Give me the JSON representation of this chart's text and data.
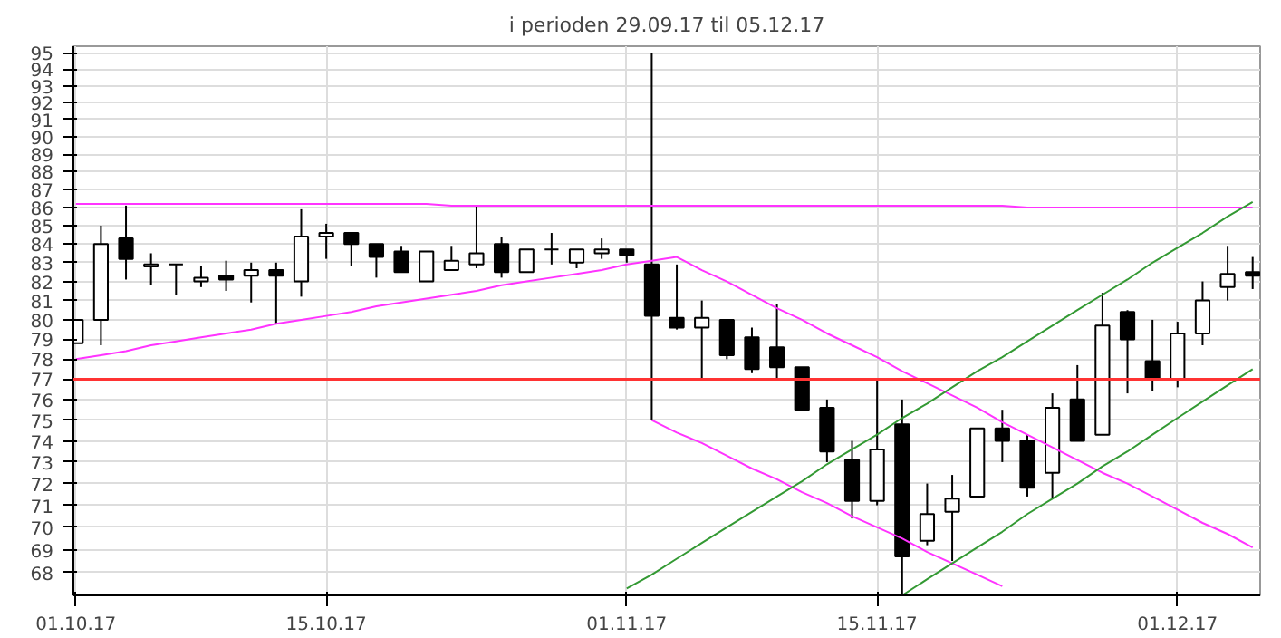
{
  "chart_data": {
    "type": "candlestick",
    "title": "i perioden 29.09.17 til 05.12.17",
    "categories": [
      "01.10.17",
      null,
      null,
      null,
      null,
      null,
      null,
      null,
      null,
      null,
      "15.10.17",
      null,
      null,
      null,
      null,
      null,
      null,
      null,
      null,
      null,
      null,
      null,
      "01.11.17",
      null,
      null,
      null,
      null,
      null,
      null,
      null,
      null,
      null,
      "15.11.17",
      null,
      null,
      null,
      null,
      null,
      null,
      null,
      null,
      null,
      null,
      null,
      "01.12.17",
      null,
      null,
      null
    ],
    "ohlc": [
      [
        78.8,
        80,
        78.8,
        80
      ],
      [
        80,
        85,
        78.7,
        84
      ],
      [
        84.3,
        86.1,
        82.1,
        83.2
      ],
      [
        82.8,
        83.5,
        81.8,
        82.9
      ],
      [
        82.9,
        82.9,
        81.3,
        82.9
      ],
      [
        82.0,
        82.8,
        81.7,
        82.2
      ],
      [
        82.3,
        83.1,
        81.5,
        82.1
      ],
      [
        82.3,
        83,
        80.9,
        82.6
      ],
      [
        82.6,
        83,
        79.8,
        82.3
      ],
      [
        82,
        85.9,
        81.2,
        84.4
      ],
      [
        84.4,
        85.1,
        83.2,
        84.6
      ],
      [
        84.6,
        84.6,
        82.8,
        84
      ],
      [
        84,
        84,
        82.2,
        83.3
      ],
      [
        83.6,
        83.9,
        82.5,
        82.5
      ],
      [
        82,
        83.6,
        82,
        83.6
      ],
      [
        82.6,
        83.9,
        82.6,
        83.1
      ],
      [
        82.9,
        86.1,
        82.7,
        83.5
      ],
      [
        84,
        84.4,
        82.2,
        82.5
      ],
      [
        82.5,
        83.7,
        82.5,
        83.7
      ],
      [
        83.7,
        84.6,
        82.9,
        83.7
      ],
      [
        83,
        83.7,
        82.7,
        83.7
      ],
      [
        83.5,
        84.3,
        83.2,
        83.7
      ],
      [
        83.7,
        83.7,
        83,
        83.4
      ],
      [
        82.9,
        95,
        75,
        80.2
      ],
      [
        80.1,
        82.9,
        79.5,
        79.6
      ],
      [
        79.6,
        81,
        77,
        80.1
      ],
      [
        80,
        80,
        78,
        78.2
      ],
      [
        79.1,
        79.6,
        77.3,
        77.5
      ],
      [
        78.6,
        80.8,
        77,
        77.6
      ],
      [
        77.6,
        77.6,
        75.5,
        75.5
      ],
      [
        75.6,
        76,
        73,
        73.5
      ],
      [
        73.1,
        74,
        70.4,
        71.2
      ],
      [
        71.2,
        77,
        71,
        73.6
      ],
      [
        74.8,
        76,
        67,
        68.7
      ],
      [
        69.4,
        72,
        69.2,
        70.6
      ],
      [
        70.7,
        72.4,
        68.5,
        71.3
      ],
      [
        71.4,
        74.6,
        71.4,
        74.6
      ],
      [
        74.6,
        75.5,
        73,
        74
      ],
      [
        74,
        74.3,
        71.4,
        71.8
      ],
      [
        72.5,
        76.3,
        71.3,
        75.6
      ],
      [
        76,
        77.7,
        74,
        74
      ],
      [
        74.3,
        81.4,
        74.3,
        79.7
      ],
      [
        80.4,
        80.5,
        76.3,
        79
      ],
      [
        77.9,
        80,
        76.4,
        77
      ],
      [
        77,
        79.9,
        76.6,
        79.3
      ],
      [
        79.3,
        82,
        78.7,
        81
      ],
      [
        81.7,
        83.9,
        81,
        82.4
      ],
      [
        82.5,
        83.3,
        81.6,
        82.3
      ]
    ],
    "series": [
      {
        "type": "line",
        "color": "#ff33ff",
        "values": [
          86.2,
          86.2,
          86.2,
          86.2,
          86.2,
          86.2,
          86.2,
          86.2,
          86.2,
          86.2,
          86.2,
          86.2,
          86.2,
          86.2,
          86.2,
          86.1,
          86.1,
          86.1,
          86.1,
          86.1,
          86.1,
          86.1,
          86.1,
          86.1,
          86.1,
          86.1,
          86.1,
          86.1,
          86.1,
          86.1,
          86.1,
          86.1,
          86.1,
          86.1,
          86.1,
          86.1,
          86.1,
          86.1,
          86.0,
          86.0,
          86.0,
          86.0,
          86.0,
          86.0,
          86.0,
          86.0,
          86.0,
          86.0
        ]
      },
      {
        "type": "line",
        "color": "#ff33ff",
        "values": [
          78.0,
          78.2,
          78.4,
          78.7,
          78.9,
          79.1,
          79.3,
          79.5,
          79.8,
          80.0,
          80.2,
          80.4,
          80.7,
          80.9,
          81.1,
          81.3,
          81.5,
          81.8,
          82.0,
          82.2,
          82.4,
          82.6,
          82.9,
          83.1,
          83.3,
          82.6,
          82.0,
          81.3,
          80.6,
          80.0,
          79.3,
          78.7,
          78.1,
          77.4,
          76.8,
          76.2,
          75.6,
          74.9,
          74.3,
          73.7,
          73.1,
          72.5,
          72.0,
          71.4,
          70.8,
          70.2,
          69.7,
          69.1
        ]
      },
      {
        "type": "line",
        "color": "#ff33ff",
        "values": [
          null,
          null,
          null,
          null,
          null,
          null,
          null,
          null,
          null,
          null,
          null,
          null,
          null,
          null,
          null,
          null,
          null,
          null,
          null,
          null,
          null,
          null,
          null,
          75.0,
          74.4,
          73.9,
          73.3,
          72.7,
          72.2,
          71.6,
          71.1,
          70.5,
          70.0,
          69.5,
          68.9,
          68.4,
          67.9,
          67.4,
          null,
          null,
          null,
          null,
          null,
          null,
          null,
          null,
          null,
          null
        ]
      },
      {
        "type": "line",
        "color": "#339933",
        "values": [
          null,
          null,
          null,
          null,
          null,
          null,
          null,
          null,
          null,
          null,
          null,
          null,
          null,
          null,
          null,
          null,
          null,
          null,
          null,
          null,
          null,
          null,
          67.3,
          67.9,
          68.6,
          69.3,
          70.0,
          70.7,
          71.4,
          72.1,
          72.9,
          73.6,
          74.3,
          75.1,
          75.8,
          76.6,
          77.4,
          78.1,
          78.9,
          79.7,
          80.5,
          81.3,
          82.1,
          83.0,
          83.8,
          84.6,
          85.5,
          86.3
        ]
      },
      {
        "type": "line",
        "color": "#339933",
        "values": [
          null,
          null,
          null,
          null,
          null,
          null,
          null,
          null,
          null,
          null,
          null,
          null,
          null,
          null,
          null,
          null,
          null,
          null,
          null,
          null,
          null,
          null,
          null,
          null,
          null,
          null,
          null,
          null,
          null,
          null,
          null,
          null,
          null,
          67.0,
          67.7,
          68.4,
          69.1,
          69.8,
          70.6,
          71.3,
          72.0,
          72.8,
          73.5,
          74.3,
          75.1,
          75.9,
          76.7,
          77.5
        ]
      }
    ],
    "ref_lines": [
      {
        "axis": "y",
        "value": 77,
        "color": "#ff3333"
      }
    ],
    "log": "y",
    "ylim": [
      67,
      95.4
    ],
    "yticks": [
      68,
      69,
      70,
      71,
      72,
      73,
      74,
      75,
      76,
      77,
      78,
      79,
      80,
      81,
      82,
      83,
      84,
      85,
      86,
      87,
      88,
      89,
      90,
      91,
      92,
      93,
      94,
      95
    ],
    "grid": true
  }
}
